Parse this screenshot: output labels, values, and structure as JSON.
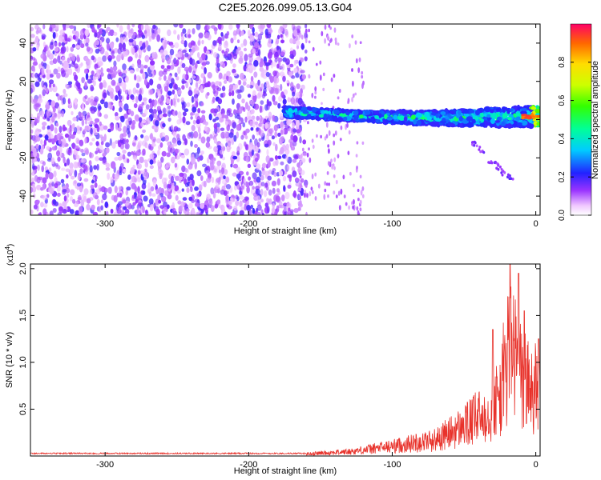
{
  "title": "C2E5.2026.099.05.13.G04",
  "chart_data": [
    {
      "type": "heatmap",
      "name": "spectrogram",
      "xlabel": "Height of straight line (km)",
      "ylabel": "Frequency (Hz)",
      "xlim": [
        -352,
        3
      ],
      "ylim": [
        -50,
        50
      ],
      "xticks": [
        -300,
        -200,
        -100,
        0
      ],
      "xtick_labels": [
        "-300",
        "-200",
        "-100",
        "0"
      ],
      "yticks": [
        -40,
        -20,
        0,
        20,
        40
      ],
      "ytick_labels": [
        "-40",
        "-20",
        "0",
        "20",
        "40"
      ],
      "colorbar": {
        "label": "Normalized spectral amplitude",
        "range": [
          0,
          1
        ],
        "ticks": [
          0.0,
          0.2,
          0.4,
          0.6,
          0.8
        ],
        "tick_labels": [
          "0.0",
          "0.2",
          "0.4",
          "0.6",
          "0.8"
        ]
      },
      "regions": [
        {
          "name": "noise",
          "x_range": [
            -352,
            -160
          ],
          "freq_range": [
            -50,
            50
          ],
          "amplitude_range": [
            0.05,
            0.2
          ]
        },
        {
          "name": "signal",
          "x_range": [
            -175,
            3
          ],
          "center_freq_start": 4,
          "center_freq_end": 2,
          "amplitude_range": [
            0.2,
            0.95
          ]
        }
      ]
    },
    {
      "type": "line",
      "name": "snr",
      "xlabel": "Height of straight line (km)",
      "ylabel": "SNR (10 * v/v)",
      "y_multiplier": "(x10",
      "y_multiplier_exp": "4",
      "y_multiplier_close": ")",
      "xlim": [
        -352,
        3
      ],
      "ylim": [
        0,
        2.05
      ],
      "xticks": [
        -300,
        -200,
        -100,
        0
      ],
      "xtick_labels": [
        "-300",
        "-200",
        "-100",
        "0"
      ],
      "yticks": [
        0.5,
        1.0,
        1.5,
        2.0
      ],
      "ytick_labels": [
        "0.5",
        "1.0",
        "1.5",
        "2.0"
      ],
      "color": "#e8322b",
      "envelope": [
        {
          "x": -352,
          "y": 0.03
        },
        {
          "x": -200,
          "y": 0.03
        },
        {
          "x": -160,
          "y": 0.04
        },
        {
          "x": -130,
          "y": 0.08
        },
        {
          "x": -100,
          "y": 0.18
        },
        {
          "x": -70,
          "y": 0.3
        },
        {
          "x": -50,
          "y": 0.55
        },
        {
          "x": -35,
          "y": 0.8
        },
        {
          "x": -25,
          "y": 1.1
        },
        {
          "x": -18,
          "y": 2.05
        },
        {
          "x": -10,
          "y": 1.45
        },
        {
          "x": 0,
          "y": 1.2
        },
        {
          "x": 3,
          "y": 1.15
        }
      ],
      "peaks": [
        {
          "x": -18,
          "y": 2.05
        },
        {
          "x": -12,
          "y": 1.95
        },
        {
          "x": -8,
          "y": 1.55
        },
        {
          "x": -30,
          "y": 1.35
        },
        {
          "x": 2,
          "y": 1.25
        }
      ]
    }
  ]
}
